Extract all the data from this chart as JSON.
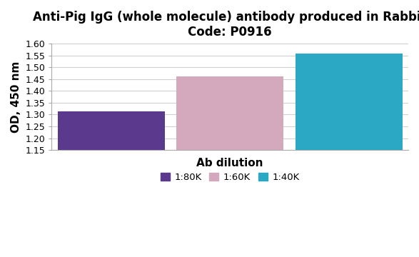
{
  "title_line1": "Anti-Pig IgG (whole molecule) antibody produced in Rabbit",
  "title_line2": "Code: P0916",
  "categories": [
    "1:80K",
    "1:60K",
    "1:40K"
  ],
  "values": [
    1.312,
    1.462,
    1.558
  ],
  "bar_colors": [
    "#5b3a8e",
    "#d4a9be",
    "#2aa8c4"
  ],
  "xlabel": "Ab dilution",
  "ylabel": "OD, 450 nm",
  "ylim": [
    1.15,
    1.6
  ],
  "yticks": [
    1.15,
    1.2,
    1.25,
    1.3,
    1.35,
    1.4,
    1.45,
    1.5,
    1.55,
    1.6
  ],
  "legend_labels": [
    "1:80K",
    "1:60K",
    "1:40K"
  ],
  "title_fontsize": 12,
  "axis_label_fontsize": 11,
  "tick_fontsize": 9,
  "legend_fontsize": 9.5,
  "bar_width": 0.9,
  "background_color": "#ffffff",
  "grid_color": "#d0d0d0"
}
